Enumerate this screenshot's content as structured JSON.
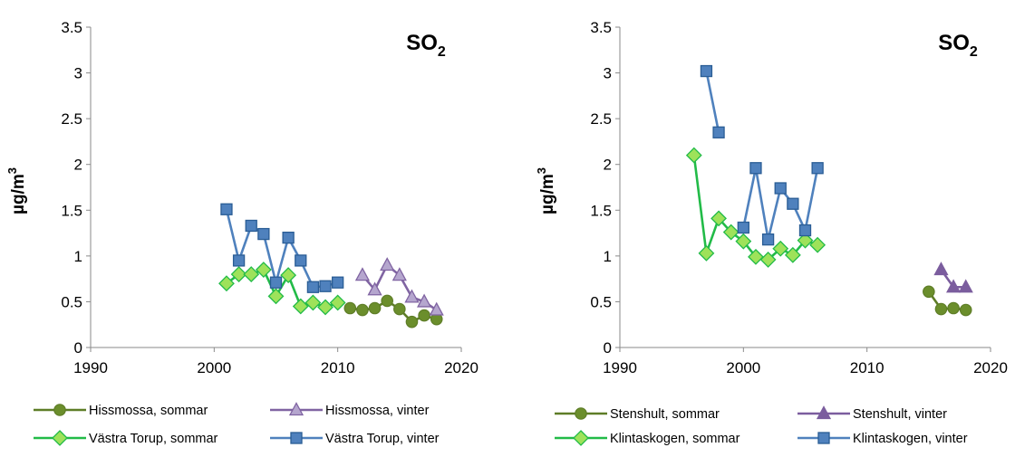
{
  "chart_data": [
    {
      "type": "line",
      "title": "SO",
      "title_subscript": "2",
      "ylabel": "µg/m",
      "ylabel_superscript": "3",
      "xlim": [
        1990,
        2020
      ],
      "ylim": [
        0,
        3.5
      ],
      "xticks": [
        1990,
        2000,
        2010,
        2020
      ],
      "yticks": [
        "0",
        "0.5",
        "1",
        "1.5",
        "2",
        "2.5",
        "3",
        "3.5"
      ],
      "grid": false,
      "legend_position": "bottom",
      "series": [
        {
          "name": "Hissmossa, sommar",
          "color": "#5e7d27",
          "fill": "#6b8e2c",
          "marker": "circle",
          "x": [
            2011,
            2012,
            2013,
            2014,
            2015,
            2016,
            2017,
            2018
          ],
          "y": [
            0.43,
            0.41,
            0.43,
            0.51,
            0.42,
            0.28,
            0.35,
            0.31
          ]
        },
        {
          "name": "Hissmossa, vinter",
          "color": "#8064a2",
          "fill": "#b5a6ce",
          "marker": "triangle",
          "x": [
            2012,
            2013,
            2014,
            2015,
            2016,
            2017,
            2018
          ],
          "y": [
            0.79,
            0.63,
            0.9,
            0.79,
            0.55,
            0.5,
            0.41
          ]
        },
        {
          "name": "Västra Torup, sommar",
          "color": "#22bb48",
          "fill": "#9ee25a",
          "marker": "diamond",
          "x": [
            2001,
            2002,
            2003,
            2004,
            2005,
            2006,
            2007,
            2008,
            2009,
            2010
          ],
          "y": [
            0.7,
            0.8,
            0.8,
            0.85,
            0.56,
            0.79,
            0.45,
            0.49,
            0.44,
            0.49
          ]
        },
        {
          "name": "Västra Torup, vinter",
          "color": "#4f81bd",
          "fill": "#4f81bd",
          "marker": "square",
          "x": [
            2001,
            2002,
            2003,
            2004,
            2005,
            2006,
            2007,
            2008,
            2009,
            2010
          ],
          "y": [
            1.51,
            0.95,
            1.33,
            1.24,
            0.71,
            1.2,
            0.95,
            0.66,
            0.67,
            0.71
          ]
        }
      ]
    },
    {
      "type": "line",
      "title": "SO",
      "title_subscript": "2",
      "ylabel": "µg/m",
      "ylabel_superscript": "3",
      "xlim": [
        1990,
        2020
      ],
      "ylim": [
        0,
        3.5
      ],
      "xticks": [
        1990,
        2000,
        2010,
        2020
      ],
      "yticks": [
        "0",
        "0.5",
        "1",
        "1.5",
        "2",
        "2.5",
        "3",
        "3.5"
      ],
      "grid": false,
      "legend_position": "bottom",
      "series": [
        {
          "name": "Stenshult, sommar",
          "color": "#5e7d27",
          "fill": "#6b8e2c",
          "marker": "circle",
          "x": [
            2015,
            2016,
            2017,
            2018
          ],
          "y": [
            0.61,
            0.42,
            0.43,
            0.41
          ]
        },
        {
          "name": "Stenshult, vinter",
          "color": "#7b5d9e",
          "fill": "#7b5d9e",
          "marker": "triangle",
          "x": [
            2016,
            2017,
            2018
          ],
          "y": [
            0.85,
            0.66,
            0.66
          ]
        },
        {
          "name": "Klintaskogen, sommar",
          "color": "#22bb48",
          "fill": "#9ee25a",
          "marker": "diamond",
          "x": [
            1996,
            1997,
            1998,
            1999,
            2000,
            2001,
            2002,
            2003,
            2004,
            2005,
            2006
          ],
          "y": [
            2.1,
            1.03,
            1.41,
            1.26,
            1.16,
            0.99,
            0.96,
            1.08,
            1.01,
            1.17,
            1.12
          ]
        },
        {
          "name": "Klintaskogen, vinter",
          "color": "#4f81bd",
          "fill": "#4f81bd",
          "marker": "square",
          "x": [
            1997,
            1998,
            null,
            2000,
            2001,
            2002,
            2003,
            2004,
            2005,
            2006
          ],
          "y": [
            3.02,
            2.35,
            null,
            1.31,
            1.96,
            1.18,
            1.74,
            1.57,
            1.28,
            1.96
          ]
        }
      ]
    }
  ]
}
